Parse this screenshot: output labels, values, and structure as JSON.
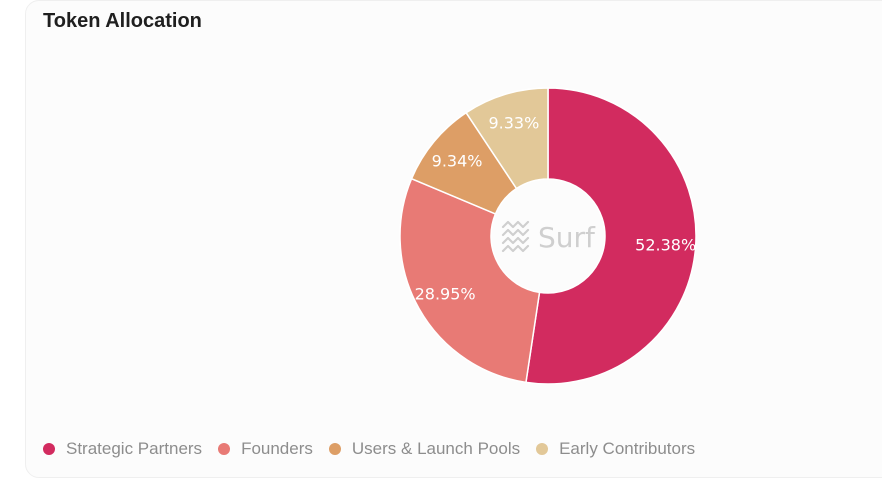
{
  "title": "Token Allocation",
  "watermark": {
    "text": "Surf",
    "icon": "waves-logo-icon"
  },
  "colors": {
    "strategic_partners": "#D22B5F",
    "founders": "#E87A75",
    "users_launch_pools": "#DD9E66",
    "early_contributors": "#E2C898"
  },
  "chart_data": {
    "type": "pie",
    "variant": "donut",
    "start": "top",
    "direction": "clockwise",
    "legend_position": "bottom-left",
    "categories": [
      "Strategic Partners",
      "Founders",
      "Users & Launch Pools",
      "Early Contributors"
    ],
    "values": [
      52.38,
      28.95,
      9.34,
      9.33
    ],
    "value_labels": [
      "52.38%",
      "28.95%",
      "9.34%",
      "9.33%"
    ],
    "colors": [
      "#D22B5F",
      "#E87A75",
      "#DD9E66",
      "#E2C898"
    ]
  }
}
